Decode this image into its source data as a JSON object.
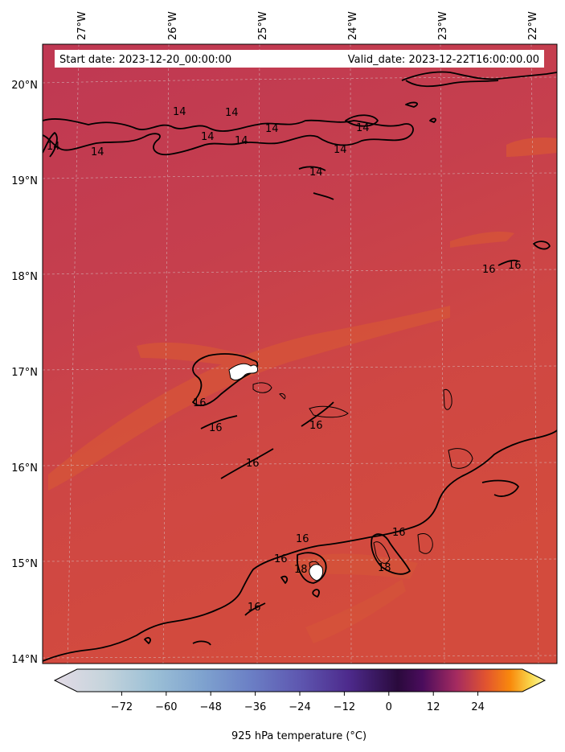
{
  "header": {
    "start_date": "Start date: 2023-12-20_00:00:00",
    "valid_date": "Valid_date: 2023-12-22T16:00:00.00"
  },
  "axes": {
    "lon_labels": [
      "27°W",
      "26°W",
      "25°W",
      "24°W",
      "23°W",
      "22°W"
    ],
    "lat_labels": [
      "20°N",
      "19°N",
      "18°N",
      "17°N",
      "16°N",
      "15°N",
      "14°N"
    ]
  },
  "contour_labels": [
    "14",
    "14",
    "14",
    "14",
    "14",
    "14",
    "14",
    "14",
    "14",
    "14",
    "16",
    "16",
    "16",
    "16",
    "16",
    "16",
    "16",
    "16",
    "16",
    "16",
    "18",
    "18"
  ],
  "colorbar": {
    "label": "925 hPa temperature ($^\\circ$C)",
    "label_display": "925 hPa temperature (°C)",
    "ticks": [
      "−72",
      "−60",
      "−48",
      "−36",
      "−24",
      "−12",
      "0",
      "12",
      "24"
    ],
    "tick_values": [
      -72,
      -60,
      -48,
      -36,
      -24,
      -12,
      0,
      12,
      24
    ],
    "vmin": -84,
    "vmax": 36,
    "colormap": "inferno-like",
    "extend": "both"
  },
  "colors": {
    "field_north": "#c03a51",
    "field_south": "#d14a3f",
    "warm_patch": "#d95a36",
    "contour": "#000000"
  }
}
